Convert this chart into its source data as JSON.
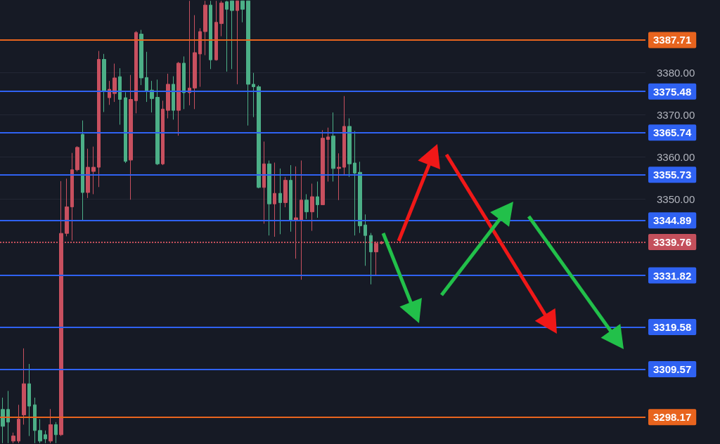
{
  "chart_data": {
    "type": "candlestick",
    "categories": [
      null,
      null,
      null,
      null,
      null,
      null,
      null,
      null,
      null,
      null,
      null,
      null,
      null,
      null,
      null,
      null,
      null,
      null,
      null,
      null,
      null,
      null,
      null,
      null,
      null,
      null,
      null,
      null,
      null,
      null,
      null,
      null,
      null,
      null,
      null,
      null,
      null,
      null,
      null,
      null,
      null,
      null,
      null,
      null,
      null,
      null,
      null,
      null,
      null,
      null,
      null,
      null,
      null,
      null,
      null,
      null,
      null,
      null,
      null,
      null,
      null,
      null,
      null,
      null,
      null,
      null,
      null,
      null,
      null,
      null,
      null,
      null,
      null,
      null,
      null,
      null,
      null,
      null,
      null,
      null,
      null,
      null,
      null,
      null,
      null,
      null,
      null,
      null,
      null,
      null,
      null,
      null,
      null,
      null,
      null,
      null,
      null,
      null,
      null,
      null,
      null,
      null,
      null,
      null,
      null,
      null,
      null,
      null,
      null,
      null,
      null,
      null,
      null,
      null,
      null,
      null,
      null,
      null,
      null,
      null,
      null
    ],
    "ohlc": [
      [
        3300,
        3302.8,
        3292,
        3296
      ],
      [
        3300,
        3304.4,
        3292,
        3297
      ],
      [
        3292.5,
        3294.5,
        3292,
        3293.7
      ],
      [
        3292.5,
        3301.1,
        3292,
        3297.7
      ],
      [
        3298.7,
        3314.5,
        3296.4,
        3306.1
      ],
      [
        3306.1,
        3310.8,
        3293.7,
        3300.8
      ],
      [
        3301.1,
        3302.8,
        3292,
        3295
      ],
      [
        3295,
        3297.7,
        3292,
        3292.5
      ],
      [
        3294,
        3295,
        3292,
        3293
      ],
      [
        3292.5,
        3300.1,
        3292,
        3296.4
      ],
      [
        3296.4,
        3297,
        3292,
        3294
      ],
      [
        3294,
        3354.2,
        3293.7,
        3341.8
      ],
      [
        3341.8,
        3354.8,
        3341.1,
        3348.1
      ],
      [
        3348.1,
        3360.9,
        3340.1,
        3356.9
      ],
      [
        3356.9,
        3362.5,
        3356.5,
        3362.2
      ],
      [
        3365.3,
        3368.6,
        3344.8,
        3351.5
      ],
      [
        3351.5,
        3361.9,
        3350.2,
        3357.5
      ],
      [
        3356.5,
        3362.4,
        3351.1,
        3357.5
      ],
      [
        3357.5,
        3385.1,
        3352.8,
        3383.1
      ],
      [
        3383.1,
        3384.4,
        3370.6,
        3375.7
      ],
      [
        3374,
        3378,
        3372.3,
        3376
      ],
      [
        3375,
        3382.1,
        3373,
        3378.7
      ],
      [
        3379,
        3381,
        3367.6,
        3373.6
      ],
      [
        3374,
        3375.3,
        3358.5,
        3358.9
      ],
      [
        3359.2,
        3379.4,
        3349.8,
        3373.6
      ],
      [
        3373.3,
        3389.8,
        3370.3,
        3389.5
      ],
      [
        3389.1,
        3390.1,
        3377,
        3378.7
      ],
      [
        3378.8,
        3384.9,
        3373,
        3375.5
      ],
      [
        3375.8,
        3378,
        3370.5,
        3373.8
      ],
      [
        3374.1,
        3378.3,
        3358,
        3358.3
      ],
      [
        3358.3,
        3373.3,
        3358,
        3371.3
      ],
      [
        3371,
        3379.7,
        3369.1,
        3377.2
      ],
      [
        3377.2,
        3379.1,
        3368.8,
        3371
      ],
      [
        3371,
        3382.5,
        3365,
        3382.2
      ],
      [
        3382.2,
        3383.8,
        3371.3,
        3375.2
      ],
      [
        3375.2,
        3397,
        3372.2,
        3376.3
      ],
      [
        3376.3,
        3393.6,
        3371.3,
        3384.7
      ],
      [
        3384.4,
        3390.5,
        3376.6,
        3389.7
      ],
      [
        3389.7,
        3397,
        3384.1,
        3396
      ],
      [
        3396,
        3397,
        3380.8,
        3383
      ],
      [
        3383,
        3397,
        3382.8,
        3391.9
      ],
      [
        3391.6,
        3397,
        3388.6,
        3396.5
      ],
      [
        3396.8,
        3397,
        3380.2,
        3395
      ],
      [
        3397,
        3397,
        3380.8,
        3394.7
      ],
      [
        3394.7,
        3397,
        3377.2,
        3397
      ],
      [
        3397,
        3397,
        3391.9,
        3395
      ],
      [
        3397,
        3397,
        3367.4,
        3377.2
      ],
      [
        3377.2,
        3379.9,
        3369.4,
        3376.6
      ],
      [
        3376.6,
        3377,
        3352.5,
        3352.7
      ],
      [
        3352.7,
        3363.6,
        3344.1,
        3358.3
      ],
      [
        3358.3,
        3359.1,
        3341.3,
        3348.8
      ],
      [
        3348.8,
        3358.6,
        3341,
        3351.3
      ],
      [
        3351.3,
        3357.2,
        3341.6,
        3349.1
      ],
      [
        3349.1,
        3355.2,
        3348,
        3354.4
      ],
      [
        3354.4,
        3358,
        3342.2,
        3344.9
      ],
      [
        3345,
        3357.7,
        3335.8,
        3345.5
      ],
      [
        3345,
        3359.1,
        3330.8,
        3349.7
      ],
      [
        3349.7,
        3351.1,
        3345.2,
        3346.9
      ],
      [
        3346.9,
        3353.6,
        3342.4,
        3350.5
      ],
      [
        3350.5,
        3354.1,
        3345.5,
        3348.6
      ],
      [
        3348.6,
        3366.3,
        3348.6,
        3364.4
      ],
      [
        3364.1,
        3366.9,
        3354.1,
        3364.7
      ],
      [
        3364.9,
        3370.5,
        3354.1,
        3357.2
      ],
      [
        3357.2,
        3360.8,
        3349.7,
        3357.5
      ],
      [
        3357.5,
        3374.4,
        3355.5,
        3367.2
      ],
      [
        3367.2,
        3369.1,
        3355.2,
        3358.3
      ],
      [
        3358.5,
        3366.1,
        3341.3,
        3356.1
      ],
      [
        3356.3,
        3358.8,
        3341.9,
        3343.6
      ],
      [
        3343.8,
        3346.3,
        3334.1,
        3341.3
      ],
      [
        3341.3,
        3341.9,
        3329.7,
        3337.4
      ],
      [
        3337.4,
        3339.9,
        3331.9,
        3339.4
      ],
      [
        3339.4,
        3340,
        3339.2,
        3339.76
      ],
      null,
      null,
      null,
      null,
      null,
      null,
      null,
      null,
      null,
      null,
      null,
      null,
      null,
      null,
      null,
      null,
      null,
      null,
      null,
      null,
      null,
      null,
      null,
      null,
      null,
      null,
      null,
      null,
      null,
      null,
      null,
      null,
      null,
      null,
      null,
      null,
      null,
      null,
      null,
      null,
      null,
      null,
      null,
      null,
      null,
      null,
      null,
      null,
      null
    ],
    "ylim": [
      3291.8,
      3397.2
    ],
    "yticks": [
      {
        "value": 3350,
        "label": "3350.00"
      },
      {
        "value": 3360,
        "label": "3360.00"
      },
      {
        "value": 3370,
        "label": "3370.00"
      },
      {
        "value": 3380,
        "label": "3380.00"
      }
    ],
    "tick_labels": "y",
    "grid": "y",
    "ref_lines": [
      {
        "axis": "y",
        "value": 3387.71,
        "label": "3387.71",
        "color": "#e8641e"
      },
      {
        "axis": "y",
        "value": 3375.48,
        "label": "3375.48",
        "color": "#2f62f2"
      },
      {
        "axis": "y",
        "value": 3365.74,
        "label": "3365.74",
        "color": "#2f62f2"
      },
      {
        "axis": "y",
        "value": 3355.73,
        "label": "3355.73",
        "color": "#2f62f2"
      },
      {
        "axis": "y",
        "value": 3344.89,
        "label": "3344.89",
        "color": "#2f62f2"
      },
      {
        "axis": "y",
        "value": 3339.76,
        "label": "3339.76",
        "color": "#c4505c",
        "line_style": "dotted"
      },
      {
        "axis": "y",
        "value": 3331.82,
        "label": "3331.82",
        "color": "#2f62f2"
      },
      {
        "axis": "y",
        "value": 3319.58,
        "label": "3319.58",
        "color": "#2f62f2"
      },
      {
        "axis": "y",
        "value": 3309.57,
        "label": "3309.57",
        "color": "#2f62f2"
      },
      {
        "axis": "y",
        "value": 3298.17,
        "label": "3298.17",
        "color": "#e8641e"
      }
    ]
  }
}
